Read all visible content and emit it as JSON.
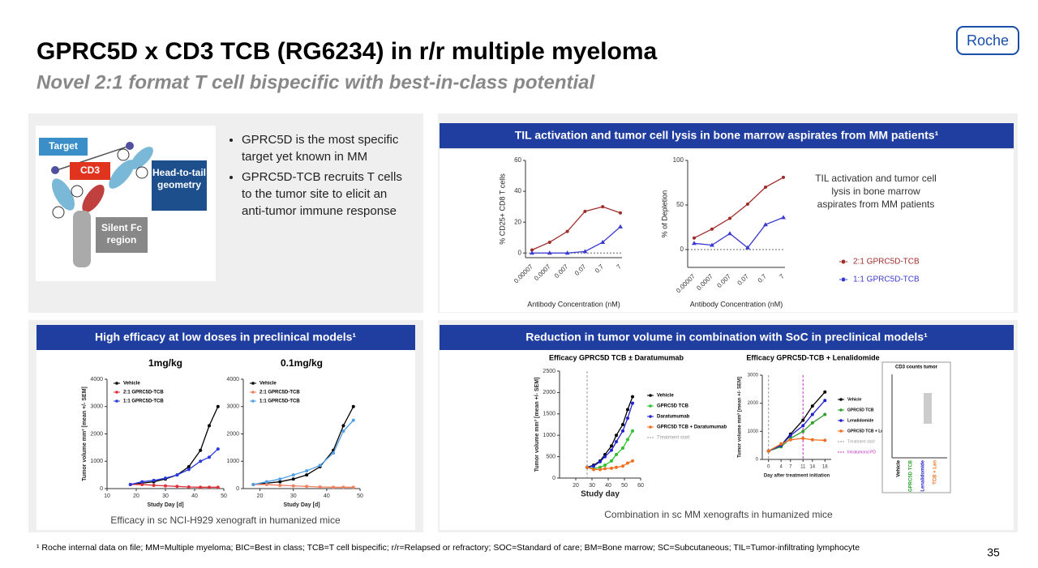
{
  "header": {
    "title": "GPRC5D x CD3 TCB (RG6234) in r/r multiple myeloma",
    "subtitle": "Novel 2:1 format T cell bispecific with best-in-class potential",
    "logo": "Roche"
  },
  "diagram": {
    "labels": [
      "Target",
      "CD3",
      "Head-to-tail geometry",
      "Silent Fc region"
    ],
    "bullets": [
      "GPRC5D is the most specific target yet known in MM",
      "GPRC5D-TCB recruits T cells to the tumor site to elicit an anti-tumor immune response"
    ]
  },
  "panels": [
    {
      "title": "TIL activation and tumor cell lysis in bone marrow aspirates from MM patients¹"
    },
    {
      "title": "High efficacy at low doses in preclinical models¹",
      "caption": "Efficacy in sc NCI-H929 xenograft in humanized mice"
    },
    {
      "title": "Reduction in tumor volume in combination with SoC in preclinical models¹",
      "caption": "Combination  in sc MM xenografts  in humanized mice"
    }
  ],
  "chart_data": [
    {
      "type": "line",
      "ylabel": "% CD25+ CD8 T cells",
      "xlabel": "Antibody  Concentration (nM)",
      "categories": [
        "0.00007",
        "0.0007",
        "0.007",
        "0.07",
        "0.7",
        "7"
      ],
      "ylim": [
        -3,
        60
      ],
      "yticks": [
        0,
        20,
        40,
        60
      ],
      "legend": "none",
      "series": [
        {
          "name": "2:1 GPRC5D-TCB",
          "color": "#a02b2b",
          "values": [
            2,
            7,
            14,
            27,
            30,
            26
          ]
        },
        {
          "name": "1:1 GPRC5D-TCB",
          "color": "#3a3ad0",
          "values": [
            0,
            0,
            0,
            1,
            7,
            17
          ]
        }
      ]
    },
    {
      "type": "line",
      "ylabel": "% of Depletion",
      "xlabel": "Antibody  Concentration (nM)",
      "categories": [
        "0.00007",
        "0.0007",
        "0.007",
        "0.07",
        "0.7",
        "7"
      ],
      "ylim": [
        -20,
        100
      ],
      "yticks": [
        0,
        50,
        100
      ],
      "legend": "outside right",
      "annotation": "TIL activation and tumor cell lysis in bone marrow aspirates from MM patients",
      "series": [
        {
          "name": "2:1 GPRC5D-TCB",
          "color": "#a02b2b",
          "values": [
            13,
            23,
            35,
            51,
            70,
            81
          ]
        },
        {
          "name": "1:1 GPRC5D-TCB",
          "color": "#3a3ad0",
          "values": [
            7,
            5,
            18,
            2,
            28,
            36
          ]
        }
      ]
    },
    {
      "type": "line",
      "title": "1mg/kg",
      "ylabel": "Tumor volume mm³ [mean +/- SEM]",
      "xlabel": "Study Day [d]",
      "x": [
        18,
        22,
        26,
        30,
        34,
        38,
        42,
        45,
        48
      ],
      "xlim": [
        10,
        50
      ],
      "xticks": [
        10,
        20,
        30,
        40,
        50
      ],
      "ylim": [
        0,
        4000
      ],
      "yticks": [
        0,
        1000,
        2000,
        3000,
        4000
      ],
      "legend": "upper left",
      "series": [
        {
          "name": "Vehicle",
          "color": "#000000",
          "values": [
            150,
            200,
            250,
            350,
            500,
            800,
            1400,
            2300,
            3000
          ]
        },
        {
          "name": "2:1 GPRC5D-TCB",
          "color": "#e0303a",
          "values": [
            150,
            150,
            120,
            100,
            80,
            60,
            50,
            50,
            50
          ]
        },
        {
          "name": "1:1 GPRC5D-TCB",
          "color": "#2a3ae0",
          "values": [
            150,
            250,
            300,
            380,
            500,
            700,
            1000,
            1150,
            1450
          ]
        }
      ]
    },
    {
      "type": "line",
      "title": "0.1mg/kg",
      "ylabel": "",
      "xlabel": "Study Day [d]",
      "x": [
        18,
        22,
        26,
        30,
        34,
        38,
        42,
        45,
        48
      ],
      "xlim": [
        15,
        50
      ],
      "xticks": [
        20,
        30,
        40,
        50
      ],
      "ylim": [
        0,
        4000
      ],
      "yticks": [
        0,
        1000,
        2000,
        3000,
        4000
      ],
      "legend": "upper left",
      "series": [
        {
          "name": "Vehicle",
          "color": "#000000",
          "values": [
            150,
            200,
            250,
            350,
            500,
            800,
            1400,
            2300,
            3000
          ]
        },
        {
          "name": "2:1 GPRC5D-TCB",
          "color": "#f08060",
          "values": [
            150,
            150,
            120,
            100,
            80,
            60,
            50,
            50,
            50
          ]
        },
        {
          "name": "1:1 GPRC5D-TCB",
          "color": "#50a0e8",
          "values": [
            150,
            250,
            350,
            500,
            650,
            850,
            1300,
            2100,
            2500
          ]
        }
      ]
    },
    {
      "type": "line",
      "title": "Efficacy GPRC5D TCB ± Daratumumab",
      "ylabel": "Tumor volume mm³ [mean +/- SEM]",
      "xlabel": "Study day",
      "x": [
        27,
        31,
        35,
        38,
        42,
        45,
        49,
        52,
        55
      ],
      "xlim": [
        10,
        60
      ],
      "xticks": [
        20,
        30,
        40,
        50,
        60
      ],
      "ylim": [
        0,
        2500
      ],
      "yticks": [
        0,
        500,
        1000,
        1500,
        2000,
        2500
      ],
      "legend": "right",
      "series": [
        {
          "name": "Vehicle",
          "color": "#000000",
          "values": [
            250,
            300,
            400,
            550,
            750,
            1000,
            1250,
            1600,
            1900
          ]
        },
        {
          "name": "GPRC5D TCB",
          "color": "#30c030",
          "values": [
            250,
            220,
            250,
            300,
            400,
            550,
            700,
            900,
            1100
          ]
        },
        {
          "name": "Daratumumab",
          "color": "#2020d0",
          "values": [
            250,
            280,
            380,
            500,
            650,
            850,
            1100,
            1400,
            1750
          ]
        },
        {
          "name": "GPRC5D TCB + Daratumumab",
          "color": "#f07020",
          "values": [
            250,
            200,
            200,
            220,
            230,
            250,
            280,
            350,
            400
          ]
        }
      ],
      "reference_lines": [
        {
          "name": "Treatment start",
          "x": 27,
          "color": "#999999"
        }
      ]
    },
    {
      "type": "line",
      "title": "Efficacy GPRC5D-TCB + Lenalidomide",
      "ylabel": "Tumor volume mm³ [mean +/- SEM]",
      "xlabel": "Day after treatment initiation",
      "x": [
        0,
        4,
        7,
        11,
        14,
        18
      ],
      "xlim": [
        -2,
        20
      ],
      "xticks": [
        0,
        4,
        7,
        11,
        14,
        18
      ],
      "ylim": [
        0,
        3000
      ],
      "yticks": [
        0,
        1000,
        2000,
        3000
      ],
      "legend": "right",
      "series": [
        {
          "name": "Vehicle",
          "color": "#000000",
          "values": [
            300,
            500,
            900,
            1400,
            1900,
            2400
          ]
        },
        {
          "name": "GPRC5D TCB",
          "color": "#30a030",
          "values": [
            300,
            450,
            750,
            1000,
            1300,
            1600
          ]
        },
        {
          "name": "Lenalidomide",
          "color": "#2020d0",
          "values": [
            300,
            500,
            850,
            1200,
            1600,
            2100
          ]
        },
        {
          "name": "GPRC5D TCB + Lenalidomide",
          "color": "#f07020",
          "values": [
            300,
            550,
            700,
            750,
            700,
            680
          ]
        }
      ],
      "reference_lines": [
        {
          "name": "Treatment start",
          "x": 0,
          "color": "#999999"
        },
        {
          "name": "Intratumoral PD",
          "x": 11,
          "color": "#c030c0"
        }
      ],
      "inset": {
        "title": "CD3 counts tumor",
        "categories": [
          "Vehicle",
          "GPRC5D TCB",
          "Lenalidomide",
          "TCB + Len"
        ]
      }
    }
  ],
  "footnote": "¹ Roche internal data on file; MM=Multiple myeloma; BIC=Best in class; TCB=T cell bispecific; r/r=Relapsed or refractory; SOC=Standard of care; BM=Bone marrow; SC=Subcutaneous; TIL=Tumor-infiltrating lymphocyte",
  "page_number": "35"
}
